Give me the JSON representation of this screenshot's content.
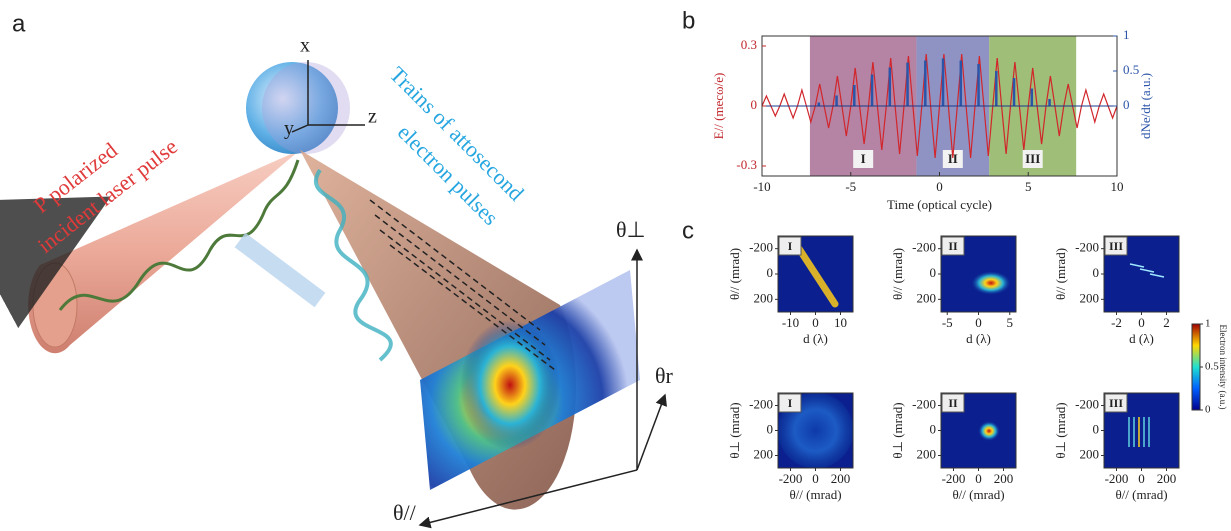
{
  "figure": {
    "panel_labels": [
      "a",
      "b",
      "c"
    ],
    "illustration": {
      "axis_x": "x",
      "axis_y": "y",
      "axis_z": "z",
      "laser_line1": "P polarized",
      "laser_line2": "incident laser pulse",
      "electron_line1": "Trains of attosecond",
      "electron_line2": "electron pulses",
      "theta_perp": "θ⊥",
      "theta_r": "θr",
      "theta_par": "θ//"
    },
    "colorbar": {
      "lim": [
        0,
        1
      ],
      "ticks": [
        0,
        0.5,
        1
      ],
      "label": "Electron intensity (a.u.)"
    }
  },
  "chart_data": [
    {
      "type": "line",
      "xlabel": "Time (optical cycle)",
      "ylabel": "E// (mecω/e)",
      "y2label": "dNe/dt (a.u.)",
      "xlim": [
        -10,
        10
      ],
      "xticks": [
        -10,
        -5,
        0,
        5,
        10
      ],
      "ylim": [
        -0.35,
        0.35
      ],
      "yticks": [
        -0.3,
        0,
        0.3
      ],
      "y2lim": [
        -1,
        1
      ],
      "y2ticks": [
        0,
        0.5,
        1
      ],
      "regions": [
        {
          "label": "I",
          "range": [
            -7.3,
            -1.3
          ],
          "color": "#9c5a86"
        },
        {
          "label": "II",
          "range": [
            -1.3,
            2.8
          ],
          "color": "#6a6fb0"
        },
        {
          "label": "III",
          "range": [
            2.8,
            7.7
          ],
          "color": "#7fa84a"
        }
      ],
      "series": [
        {
          "color": "#d1262b",
          "x": [
            -10,
            -9.75,
            -9.5,
            -9.25,
            -9,
            -8.75,
            -8.5,
            -8.25,
            -8,
            -7.75,
            -7.5,
            -7.25,
            -7,
            -6.75,
            -6.5,
            -6.25,
            -6,
            -5.75,
            -5.5,
            -5.25,
            -5,
            -4.75,
            -4.5,
            -4.25,
            -4,
            -3.75,
            -3.5,
            -3.25,
            -3,
            -2.75,
            -2.5,
            -2.25,
            -2,
            -1.75,
            -1.5,
            -1.25,
            -1,
            -0.75,
            -0.5,
            -0.25,
            0,
            0.25,
            0.5,
            0.75,
            1,
            1.25,
            1.5,
            1.75,
            2,
            2.25,
            2.5,
            2.75,
            3,
            3.25,
            3.5,
            3.75,
            4,
            4.25,
            4.5,
            4.75,
            5,
            5.25,
            5.5,
            5.75,
            6,
            6.25,
            6.5,
            6.75,
            7,
            7.25,
            7.5,
            7.75,
            8,
            8.25,
            8.5,
            8.75,
            9,
            9.25,
            9.5,
            9.75,
            10
          ],
          "values": [
            0,
            0.05,
            0,
            -0.05,
            0,
            0.06,
            0,
            -0.06,
            0,
            0.08,
            0,
            -0.08,
            0,
            0.11,
            0,
            -0.11,
            0,
            0.15,
            0,
            -0.15,
            0,
            0.19,
            0,
            -0.19,
            0,
            0.22,
            0,
            -0.22,
            0,
            0.24,
            0,
            -0.24,
            0,
            0.25,
            0,
            -0.25,
            0,
            0.26,
            0,
            -0.26,
            0,
            0.26,
            0,
            -0.26,
            0,
            0.26,
            0,
            -0.26,
            0,
            0.25,
            0,
            -0.25,
            0,
            0.24,
            0,
            -0.24,
            0,
            0.22,
            0,
            -0.22,
            0,
            0.19,
            0,
            -0.19,
            0,
            0.15,
            0,
            -0.15,
            0,
            0.11,
            0,
            -0.11,
            0,
            0.08,
            0,
            -0.08,
            0,
            0.06,
            0,
            -0.06,
            0
          ]
        },
        {
          "color": "#2b55a8",
          "axis": "y2",
          "x": [
            -6.8,
            -5.8,
            -4.8,
            -3.8,
            -2.8,
            -1.8,
            -0.8,
            0.2,
            1.2,
            2.2,
            3.2,
            4.2,
            5.2,
            6.2
          ],
          "values": [
            0.05,
            0.15,
            0.3,
            0.45,
            0.55,
            0.62,
            0.65,
            0.68,
            0.65,
            0.6,
            0.5,
            0.4,
            0.25,
            0.1
          ]
        }
      ]
    },
    {
      "type": "heatmap",
      "label": "I",
      "xlabel": "d (λ)",
      "ylabel": "θ// (mrad)",
      "xlim": [
        -15,
        15
      ],
      "xticks": [
        -10,
        0,
        10
      ],
      "ylim": [
        300,
        -300
      ],
      "yticks": [
        -200,
        0,
        200
      ]
    },
    {
      "type": "heatmap",
      "label": "II",
      "xlabel": "d (λ)",
      "ylabel": "θ// (mrad)",
      "xlim": [
        -6,
        6
      ],
      "xticks": [
        -5,
        0,
        5
      ],
      "ylim": [
        300,
        -300
      ],
      "yticks": [
        -200,
        0,
        200
      ]
    },
    {
      "type": "heatmap",
      "label": "III",
      "xlabel": "d (λ)",
      "ylabel": "θ// (mrad)",
      "xlim": [
        -3,
        3
      ],
      "xticks": [
        -2,
        0,
        2
      ],
      "ylim": [
        300,
        -300
      ],
      "yticks": [
        -200,
        0,
        200
      ]
    },
    {
      "type": "heatmap",
      "label": "I",
      "xlabel": "θ// (mrad)",
      "ylabel": "θ⊥ (mrad)",
      "xlim": [
        -300,
        300
      ],
      "xticks": [
        -200,
        0,
        200
      ],
      "ylim": [
        300,
        -300
      ],
      "yticks": [
        -200,
        0,
        200
      ]
    },
    {
      "type": "heatmap",
      "label": "II",
      "xlabel": "θ// (mrad)",
      "ylabel": "θ⊥ (mrad)",
      "xlim": [
        -300,
        300
      ],
      "xticks": [
        -200,
        0,
        200
      ],
      "ylim": [
        300,
        -300
      ],
      "yticks": [
        -200,
        0,
        200
      ]
    },
    {
      "type": "heatmap",
      "label": "III",
      "xlabel": "θ// (mrad)",
      "ylabel": "θ⊥ (mrad)",
      "xlim": [
        -300,
        300
      ],
      "xticks": [
        -200,
        0,
        200
      ],
      "ylim": [
        300,
        -300
      ],
      "yticks": [
        -200,
        0,
        200
      ]
    }
  ]
}
